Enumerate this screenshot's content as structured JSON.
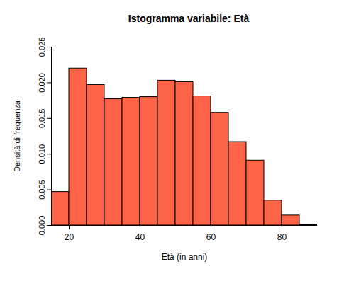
{
  "chart_data": {
    "type": "histogram",
    "title": "Istogramma variabile: Età",
    "x_label": "Età (in anni)",
    "y_label": "Densità di frequenza",
    "bins": [
      15,
      20,
      25,
      30,
      35,
      40,
      45,
      50,
      55,
      60,
      65,
      70,
      75,
      80,
      85,
      90
    ],
    "values": [
      0.0047,
      0.022,
      0.0197,
      0.0177,
      0.0179,
      0.018,
      0.0203,
      0.0201,
      0.0181,
      0.0158,
      0.0117,
      0.0091,
      0.0035,
      0.0014,
      0.0001
    ],
    "color": "#fd6347",
    "xlim": [
      15,
      90
    ],
    "ylim": [
      0,
      0.025
    ],
    "xticks": [
      20,
      40,
      60,
      80
    ],
    "yticks": [
      {
        "value": 0,
        "label": "0.000"
      },
      {
        "value": 0.005,
        "label": "0.005"
      },
      {
        "value": 0.01,
        "label": "0.010"
      },
      {
        "value": 0.015,
        "label": "0.015"
      },
      {
        "value": 0.02,
        "label": "0.020"
      },
      {
        "value": 0.025,
        "label": "0.025"
      }
    ],
    "grid": false
  }
}
